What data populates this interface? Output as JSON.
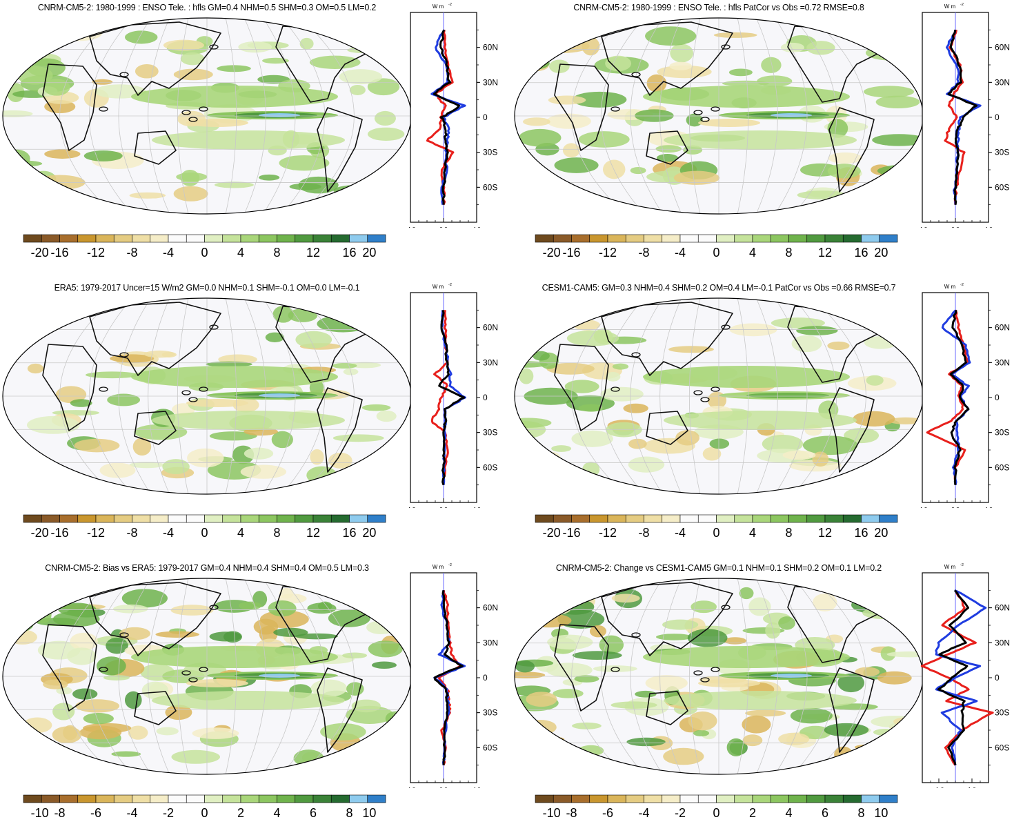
{
  "palette": {
    "colors": [
      "#6e4a1e",
      "#8a5a28",
      "#a86e2c",
      "#c9962e",
      "#dab55a",
      "#e5cc82",
      "#efdfa6",
      "#f5edc8",
      "#fbfbfb",
      "#fbfbfb",
      "#e0efc2",
      "#c5e39b",
      "#a9d67a",
      "#8cc660",
      "#6fb34c",
      "#509a3f",
      "#3a8237",
      "#256b30",
      "#8ecbee",
      "#2f7fc9"
    ],
    "land_fill": "#fbfbfb",
    "coast": "#111111",
    "grid": "#c8c8c8",
    "line_red": "#e8201c",
    "line_blue": "#1f3ce0",
    "line_black": "#000000"
  },
  "panels": [
    {
      "id": "p1",
      "title": "CNRM-CM5-2: 1980-1999 : ENSO Tele. : hfls GM=0.4 NHM=0.5 SHM=0.3 OM=0.5 LM=0.2",
      "colorbar_labels": [
        "-20",
        "-16",
        "-12",
        "-8",
        "-4",
        "0",
        "4",
        "8",
        "12",
        "16",
        "20"
      ],
      "zonal_xticks": [
        "-4.0",
        "0.0",
        "4.0"
      ],
      "zonal_xrange": [
        -4,
        4
      ]
    },
    {
      "id": "p2",
      "title": "CNRM-CM5-2: 1980-1999 : ENSO Tele. : hfls PatCor vs Obs =0.72 RMSE=0.8",
      "colorbar_labels": [
        "-20",
        "-16",
        "-12",
        "-8",
        "-4",
        "0",
        "4",
        "8",
        "12",
        "16",
        "20"
      ],
      "zonal_xticks": [
        "-4.0",
        "0.0",
        "4.0"
      ],
      "zonal_xrange": [
        -4,
        4
      ]
    },
    {
      "id": "p3",
      "title": "ERA5: 1979-2017 Uncer=15 W/m2 GM=0.0 NHM=0.1 SHM=-0.1 OM=0.0 LM=-0.1",
      "colorbar_labels": [
        "-20",
        "-16",
        "-12",
        "-8",
        "-4",
        "0",
        "4",
        "8",
        "12",
        "16",
        "20"
      ],
      "zonal_xticks": [
        "-4.0",
        "0.0",
        "4.0"
      ],
      "zonal_xrange": [
        -4,
        4
      ]
    },
    {
      "id": "p4",
      "title": "CESM1-CAM5: GM=0.3 NHM=0.4 SHM=0.2 OM=0.4 LM=-0.1 PatCor vs Obs =0.66 RMSE=0.7",
      "colorbar_labels": [
        "-20",
        "-16",
        "-12",
        "-8",
        "-4",
        "0",
        "4",
        "8",
        "12",
        "16",
        "20"
      ],
      "zonal_xticks": [
        "-4.0",
        "0.0",
        "4.0"
      ],
      "zonal_xrange": [
        -4,
        4
      ]
    },
    {
      "id": "p5",
      "title": "CNRM-CM5-2: Bias vs ERA5: 1979-2017 GM=0.4 NHM=0.4 SHM=0.4 OM=0.5 LM=0.3",
      "colorbar_labels": [
        "-10",
        "-8",
        "-6",
        "-4",
        "-2",
        "0",
        "2",
        "4",
        "6",
        "8",
        "10"
      ],
      "zonal_xticks": [
        "-4.0",
        "0.0",
        "4.0"
      ],
      "zonal_xrange": [
        -4,
        4
      ]
    },
    {
      "id": "p6",
      "title": "CNRM-CM5-2: Change vs CESM1-CAM5 GM=0.1 NHM=0.1 SHM=0.2 OM=0.1 LM=0.2",
      "colorbar_labels": [
        "-10",
        "-8",
        "-6",
        "-4",
        "-2",
        "0",
        "2",
        "4",
        "6",
        "8",
        "10"
      ],
      "zonal_xticks": [
        "-1.0",
        "1.0"
      ],
      "zonal_xrange": [
        -2,
        2
      ]
    }
  ],
  "zonal_common": {
    "unit_label": "W m",
    "unit_exp": "-2",
    "lat_labels": [
      "60N",
      "30N",
      "0",
      "30S",
      "60S"
    ],
    "lat_values": [
      60,
      30,
      0,
      -30,
      -60
    ]
  },
  "chart_data": [
    {
      "type": "line",
      "panel": "p1",
      "y_lat": [
        75,
        60,
        45,
        30,
        20,
        10,
        0,
        -10,
        -20,
        -30,
        -45,
        -60,
        -75
      ],
      "series": [
        {
          "color": "red",
          "values": [
            0.1,
            0.2,
            0.5,
            1.0,
            -1.0,
            0.2,
            -0.3,
            -0.4,
            -2.0,
            1.2,
            -0.3,
            0.1,
            0.0
          ]
        },
        {
          "color": "blue",
          "values": [
            0.0,
            -1.0,
            0.3,
            0.5,
            -1.5,
            2.5,
            0.0,
            0.6,
            0.5,
            0.3,
            0.4,
            -0.2,
            -0.1
          ]
        },
        {
          "color": "black",
          "values": [
            0.0,
            -0.3,
            0.4,
            0.7,
            -1.2,
            2.0,
            -0.2,
            0.3,
            0.2,
            0.4,
            0.2,
            0.0,
            0.0
          ]
        }
      ]
    },
    {
      "type": "line",
      "panel": "p2",
      "y_lat": [
        75,
        60,
        45,
        30,
        20,
        10,
        0,
        -10,
        -20,
        -30,
        -45,
        -60,
        -75
      ],
      "series": [
        {
          "color": "red",
          "values": [
            0.2,
            -0.6,
            0.6,
            0.8,
            -0.2,
            -0.8,
            0.2,
            -0.8,
            -1.2,
            1.0,
            0.6,
            0.1,
            0.0
          ]
        },
        {
          "color": "blue",
          "values": [
            0.0,
            -1.1,
            0.2,
            0.4,
            -1.0,
            3.0,
            0.6,
            0.4,
            0.3,
            0.3,
            0.2,
            -0.1,
            0.0
          ]
        },
        {
          "color": "black",
          "values": [
            0.0,
            -0.5,
            0.5,
            0.6,
            -0.8,
            2.5,
            1.0,
            0.3,
            0.1,
            0.3,
            0.2,
            0.0,
            0.0
          ]
        }
      ]
    },
    {
      "type": "line",
      "panel": "p3",
      "y_lat": [
        75,
        60,
        45,
        30,
        20,
        10,
        0,
        -10,
        -20,
        -30,
        -45,
        -60,
        -75
      ],
      "series": [
        {
          "color": "red",
          "values": [
            0.1,
            0.2,
            0.3,
            0.4,
            -1.0,
            0.5,
            -0.3,
            -0.6,
            -1.5,
            0.2,
            0.5,
            0.1,
            0.0
          ]
        },
        {
          "color": "blue",
          "values": [
            0.0,
            -0.3,
            0.3,
            0.5,
            0.8,
            0.8,
            2.6,
            0.2,
            0.2,
            0.1,
            0.2,
            0.0,
            0.0
          ]
        },
        {
          "color": "black",
          "values": [
            0.0,
            -0.2,
            0.3,
            0.4,
            0.5,
            -0.5,
            2.5,
            0.1,
            0.2,
            0.1,
            0.1,
            0.0,
            0.0
          ]
        }
      ]
    },
    {
      "type": "line",
      "panel": "p4",
      "y_lat": [
        75,
        60,
        45,
        30,
        20,
        10,
        0,
        -10,
        -20,
        -30,
        -45,
        -60,
        -75
      ],
      "series": [
        {
          "color": "red",
          "values": [
            0.0,
            0.4,
            1.0,
            1.5,
            -0.8,
            0.8,
            0.4,
            1.0,
            -0.5,
            -3.5,
            1.2,
            0.0,
            0.0
          ]
        },
        {
          "color": "blue",
          "values": [
            0.0,
            -1.6,
            1.2,
            1.8,
            -0.5,
            1.5,
            0.6,
            1.6,
            0.2,
            0.3,
            0.4,
            -0.2,
            0.0
          ]
        },
        {
          "color": "black",
          "values": [
            0.0,
            -0.3,
            0.8,
            1.2,
            -0.6,
            1.0,
            0.5,
            1.5,
            0.1,
            -0.5,
            0.5,
            0.0,
            0.0
          ]
        }
      ]
    },
    {
      "type": "line",
      "panel": "p5",
      "y_lat": [
        75,
        60,
        45,
        30,
        20,
        10,
        0,
        -10,
        -20,
        -30,
        -45,
        -60,
        -75
      ],
      "series": [
        {
          "color": "red",
          "values": [
            0.1,
            0.5,
            0.5,
            0.8,
            1.0,
            2.0,
            -0.5,
            0.5,
            0.6,
            0.8,
            -0.2,
            0.2,
            0.0
          ]
        },
        {
          "color": "blue",
          "values": [
            0.0,
            -0.2,
            0.4,
            0.7,
            -0.5,
            2.5,
            -1.0,
            0.4,
            0.5,
            0.6,
            0.2,
            0.1,
            0.0
          ]
        },
        {
          "color": "black",
          "values": [
            0.0,
            0.1,
            0.4,
            0.6,
            0.2,
            2.2,
            -1.2,
            0.4,
            0.4,
            0.5,
            0.0,
            0.1,
            0.0
          ]
        }
      ]
    },
    {
      "type": "line",
      "panel": "p6",
      "y_lat": [
        75,
        60,
        45,
        30,
        20,
        10,
        0,
        -10,
        -20,
        -30,
        -45,
        -60,
        -75
      ],
      "series": [
        {
          "color": "red",
          "values": [
            0.0,
            0.6,
            -0.8,
            1.2,
            -0.5,
            -2.0,
            -0.4,
            0.8,
            -0.6,
            2.2,
            0.4,
            -0.6,
            0.0
          ]
        },
        {
          "color": "blue",
          "values": [
            0.0,
            1.8,
            0.2,
            -1.0,
            -1.2,
            1.5,
            0.0,
            -1.2,
            1.3,
            -0.8,
            0.3,
            -0.2,
            0.0
          ]
        },
        {
          "color": "black",
          "values": [
            0.0,
            0.8,
            -0.3,
            0.6,
            -1.0,
            0.7,
            -0.2,
            -1.0,
            0.5,
            0.4,
            0.5,
            -0.4,
            0.0
          ]
        }
      ]
    }
  ]
}
